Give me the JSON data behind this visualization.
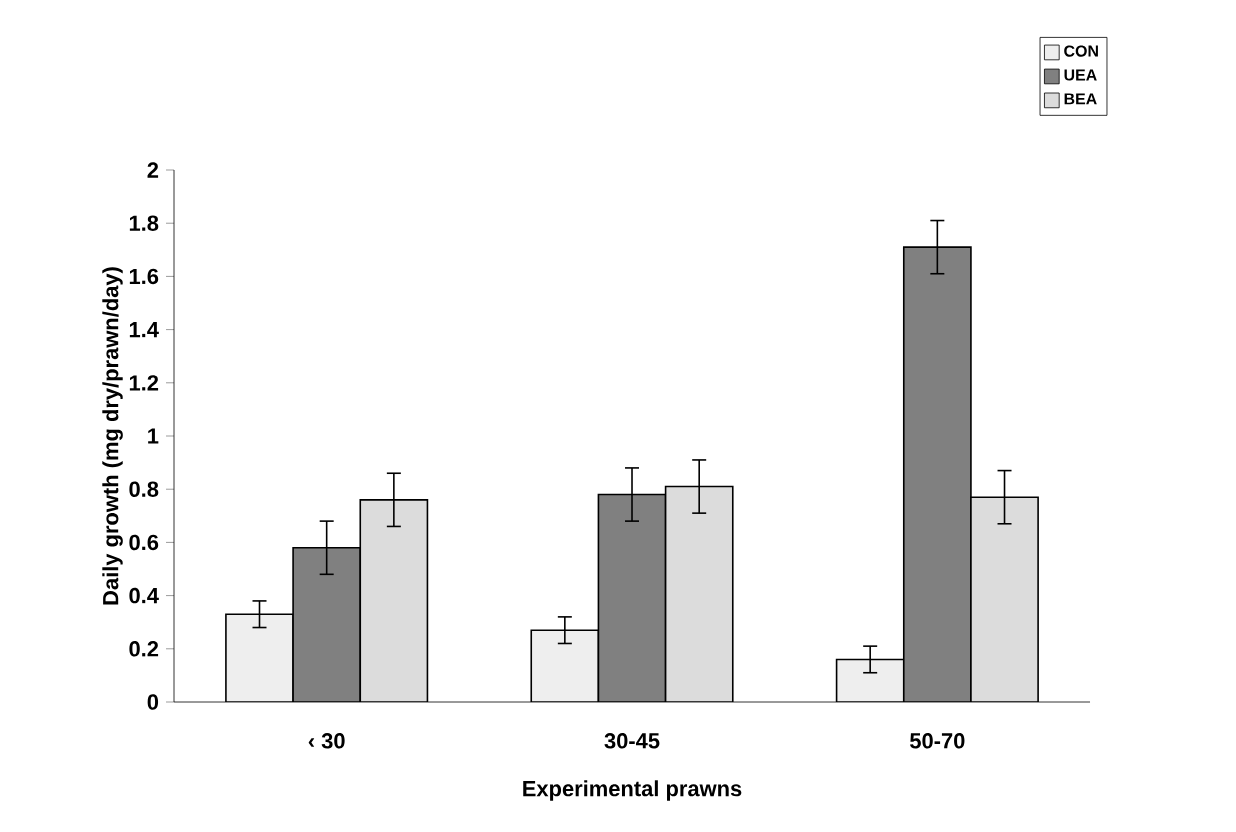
{
  "chart_data": {
    "type": "bar",
    "xlabel": "Experimental prawns",
    "ylabel": "Daily growth (mg dry/prawn/day)",
    "categories": [
      "‹ 30",
      "30-45",
      "50-70"
    ],
    "series": [
      {
        "name": "CON",
        "color": "#eeeeee",
        "values": [
          0.33,
          0.27,
          0.16
        ],
        "errors": [
          0.05,
          0.05,
          0.05
        ]
      },
      {
        "name": "UEA",
        "color": "#808080",
        "values": [
          0.58,
          0.78,
          1.71
        ],
        "errors": [
          0.1,
          0.1,
          0.1
        ]
      },
      {
        "name": "BEA",
        "color": "#dcdcdc",
        "values": [
          0.76,
          0.81,
          0.77
        ],
        "errors": [
          0.1,
          0.1,
          0.1
        ]
      }
    ],
    "ylim": [
      0,
      2
    ],
    "yticks": [
      0,
      0.2,
      0.4,
      0.6,
      0.8,
      1,
      1.2,
      1.4,
      1.6,
      1.8,
      2
    ],
    "legend": "top right",
    "grid": false
  }
}
